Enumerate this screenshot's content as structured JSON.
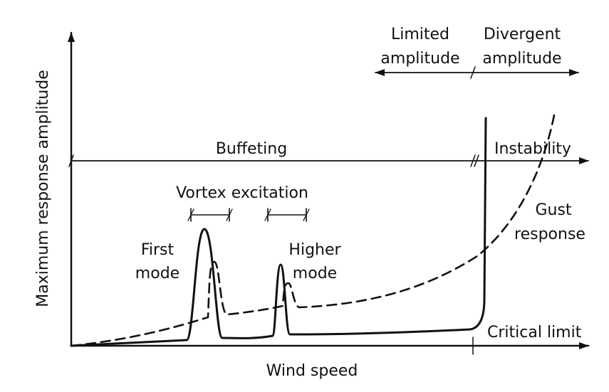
{
  "axes": {
    "x_label": "Wind speed",
    "y_label": "Maximum response amplitude",
    "critical_limit_label": "Critical limit"
  },
  "regions": {
    "buffeting": "Buffeting",
    "instability": "Instability",
    "limited_line1": "Limited",
    "limited_line2": "amplitude",
    "divergent_line1": "Divergent",
    "divergent_line2": "amplitude",
    "vortex_excitation": "Vortex excitation"
  },
  "annotations": {
    "first_mode_line1": "First",
    "first_mode_line2": "mode",
    "higher_mode_line1": "Higher",
    "higher_mode_line2": "mode",
    "gust_line1": "Gust",
    "gust_line2": "response"
  },
  "colors": {
    "ink": "#111111",
    "background": "#ffffff"
  }
}
